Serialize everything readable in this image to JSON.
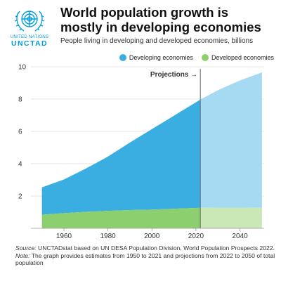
{
  "logo": {
    "org_name": "UNITED NATIONS",
    "org_short": "UNCTAD",
    "emblem_icon": "un-emblem-icon"
  },
  "header": {
    "title_line1": "World population growth is",
    "title_line2": "mostly in developing economies",
    "subtitle": "People living in developing and developed economies, billions"
  },
  "legend": {
    "developing": "Developing economies",
    "developed": "Developed economies"
  },
  "footer": {
    "source_label": "Source:",
    "source_text": "UNCTADstat based on UN DESA Population Division, World Population Prospects 2022.",
    "note_label": "Note:",
    "note_text": "The graph provides estimates from 1950 to 2021 and projections from 2022 to 2050 of total population"
  },
  "chart_data": {
    "type": "area",
    "stacked": true,
    "title": "World population growth is mostly in developing economies",
    "subtitle": "People living in developing and developed economies, billions",
    "x": [
      1950,
      1960,
      1970,
      1980,
      1990,
      2000,
      2010,
      2020,
      2022,
      2030,
      2040,
      2050
    ],
    "series": [
      {
        "name": "Developed economies",
        "color": "#8ccf6e",
        "projection_color": "#c9e8b6",
        "values": [
          0.84,
          0.94,
          1.02,
          1.08,
          1.13,
          1.16,
          1.21,
          1.26,
          1.27,
          1.28,
          1.28,
          1.27
        ]
      },
      {
        "name": "Developing economies",
        "color": "#3aaee0",
        "projection_color": "#a6d9f2",
        "values": [
          1.69,
          2.08,
          2.68,
          3.36,
          4.18,
          4.98,
          5.76,
          6.54,
          6.7,
          7.27,
          7.87,
          8.38
        ]
      }
    ],
    "projection_start": 2022,
    "projection_label": "Projections →",
    "xlim": [
      1945,
      2051
    ],
    "ylim": [
      0,
      10
    ],
    "x_ticks": [
      1960,
      1980,
      2000,
      2020,
      2040
    ],
    "y_ticks": [
      2,
      4,
      6,
      8,
      10
    ],
    "grid": true,
    "legend_position": "top-right"
  }
}
